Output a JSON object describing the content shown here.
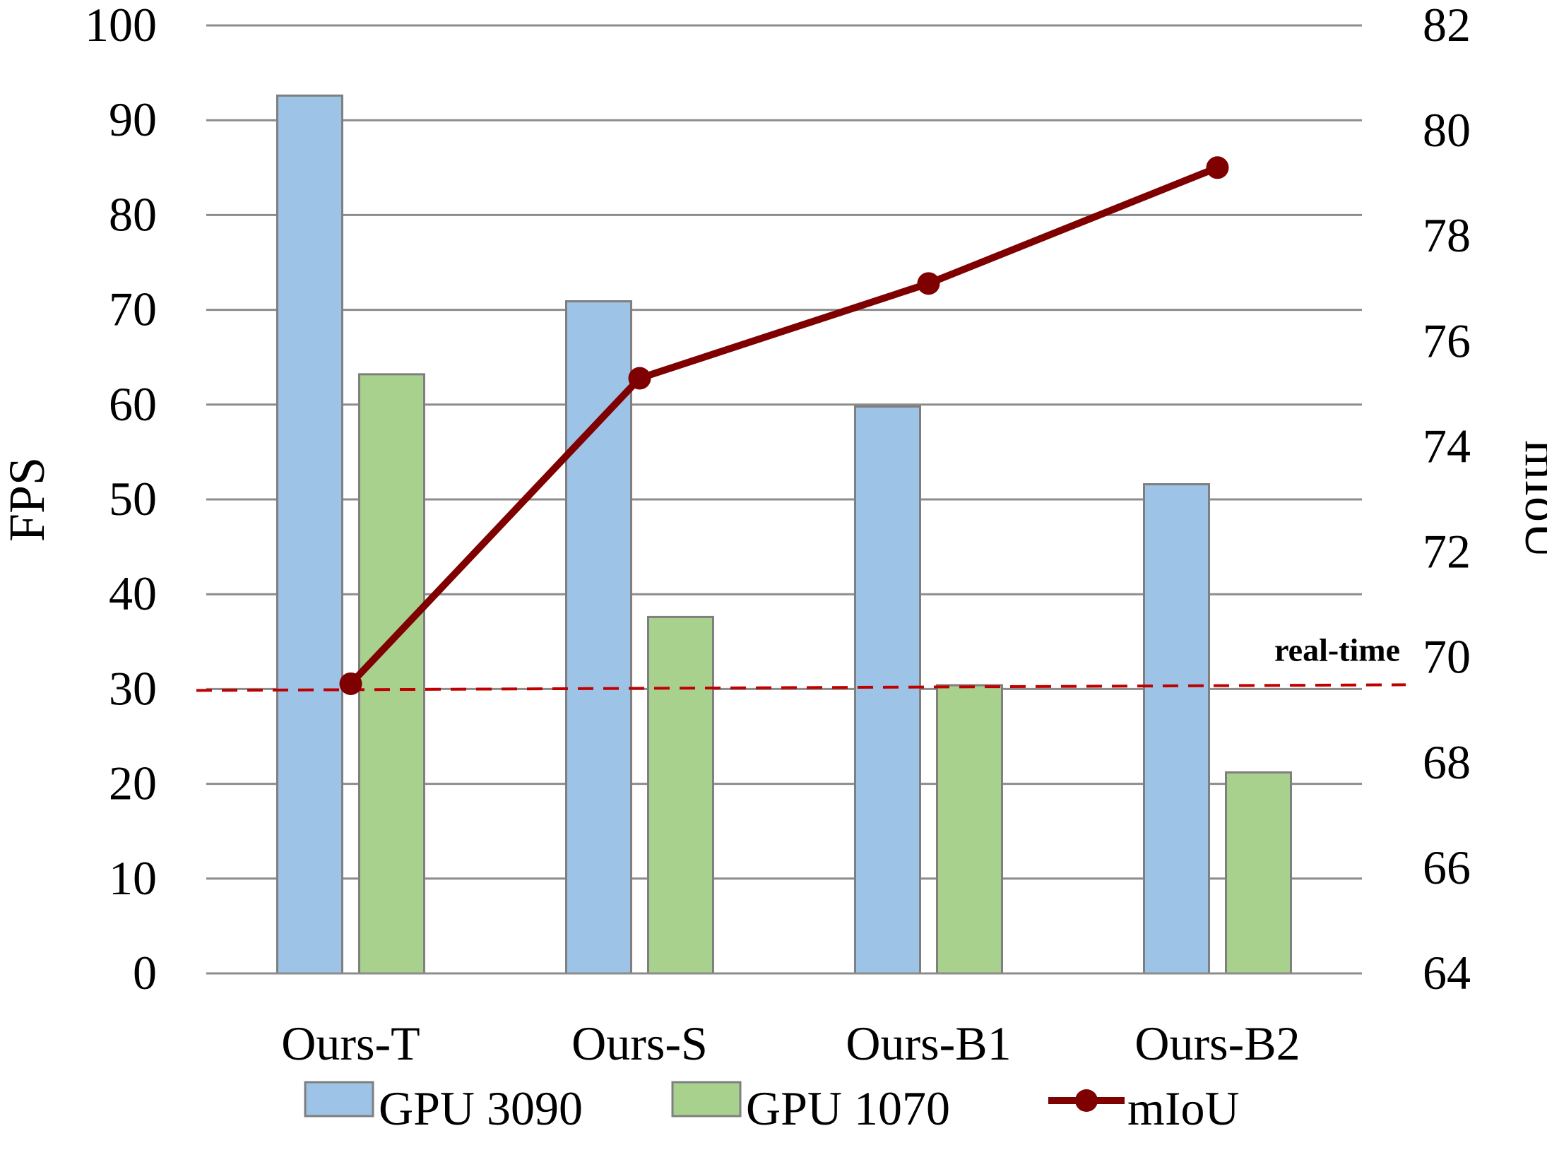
{
  "chart_data": {
    "type": "bar",
    "categories": [
      "Ours-T",
      "Ours-S",
      "Ours-B1",
      "Ours-B2"
    ],
    "series": [
      {
        "name": "GPU 3090",
        "type": "bar",
        "axis": "left",
        "values": [
          92.6,
          70.9,
          59.8,
          51.6
        ],
        "color": "#9dc3e6"
      },
      {
        "name": "GPU 1070",
        "type": "bar",
        "axis": "left",
        "values": [
          63.2,
          37.6,
          30.4,
          21.2
        ],
        "color": "#a9d18e"
      },
      {
        "name": "mIoU",
        "type": "line",
        "axis": "right",
        "values": [
          69.5,
          75.3,
          77.1,
          79.3
        ],
        "color": "#7f0000"
      }
    ],
    "ylabel": "FPS",
    "y2label": "mIoU",
    "ylim": [
      0,
      100
    ],
    "y2lim": [
      64,
      82
    ],
    "yticks": [
      "0",
      "10",
      "20",
      "30",
      "40",
      "50",
      "60",
      "70",
      "80",
      "90",
      "100"
    ],
    "y2ticks": [
      "64",
      "66",
      "68",
      "70",
      "72",
      "74",
      "76",
      "78",
      "80",
      "82"
    ],
    "annotation": {
      "text": "real-time",
      "fps": 30,
      "color": "#c00000"
    },
    "grid": true,
    "legend_position": "bottom"
  }
}
